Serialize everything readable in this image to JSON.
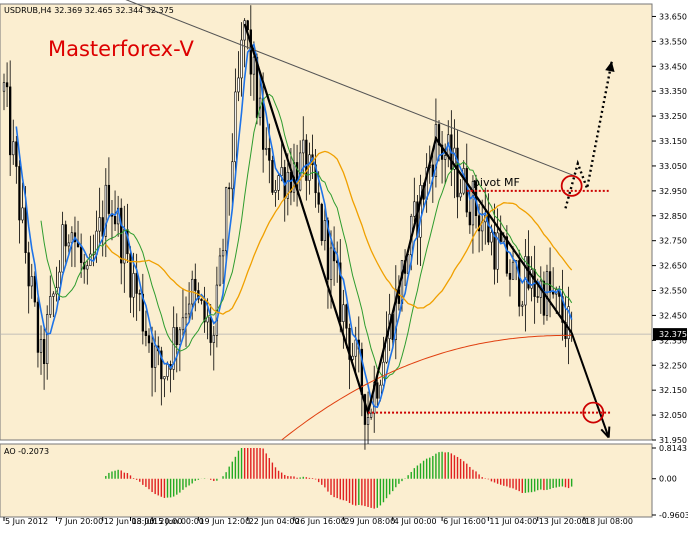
{
  "header": {
    "symbol_info": "USDRUB,H4  32.369 32.465 32.344 32.375"
  },
  "watermark": "Masterforex-V",
  "annotation": {
    "pivot_label": "pivot MF"
  },
  "colors": {
    "background": "#fbeed0",
    "candles": "#000000",
    "fast_ma": "#1e73e8",
    "medium_ma": "#2e9c2e",
    "slow_ma": "#f0a000",
    "long_ma": "#e04010",
    "wave_lines": "#000000",
    "pivot_lines": "#cc0000",
    "forecast": "#000000",
    "ao_up": "#22aa22",
    "ao_down": "#e02020",
    "watermark": "#dd0000"
  },
  "chart_data": [
    {
      "type": "candlestick",
      "symbol": "USDRUB",
      "timeframe": "H4",
      "ohlc_last": {
        "open": 32.369,
        "high": 32.465,
        "low": 32.344,
        "close": 32.375
      },
      "last_price_label": "32.375",
      "ylim": [
        31.95,
        33.7
      ],
      "y_ticks": [
        "33.650",
        "33.550",
        "33.450",
        "33.350",
        "33.250",
        "33.150",
        "33.050",
        "32.950",
        "32.850",
        "32.750",
        "32.650",
        "32.550",
        "32.450",
        "32.350",
        "32.250",
        "32.150",
        "32.050",
        "31.950"
      ],
      "x_ticks": [
        "5 Jun 2012",
        "7 Jun 20:00",
        "12 Jun 08:00",
        "13 Jun 20:00",
        "15 Jun 00:00",
        "19 Jun 12:00",
        "22 Jun 04:00",
        "26 Jun 16:00",
        "29 Jun 08:00",
        "4 Jul 00:00",
        "6 Jul 16:00",
        "11 Jul 04:00",
        "13 Jul 20:00",
        "18 Jul 08:00"
      ],
      "wave_points": [
        {
          "time": "22 Jun 00:00",
          "price": 33.62
        },
        {
          "time": "2 Jul 16:00",
          "price": 32.06
        },
        {
          "time": "6 Jul 08:00",
          "price": 33.16
        },
        {
          "time": "17 Jul 16:00",
          "price": 32.38
        }
      ],
      "forecast_down": {
        "from": {
          "time": "17 Jul 16:00",
          "price": 32.38
        },
        "to": {
          "time": "19 Jul 16:00",
          "price": 31.96
        }
      },
      "forecast_up": [
        {
          "time": "17 Jul 08:00",
          "price": 32.88
        },
        {
          "time": "18 Jul 00:00",
          "price": 33.06
        },
        {
          "time": "18 Jul 12:00",
          "price": 32.96
        },
        {
          "time": "19 Jul 20:00",
          "price": 33.47
        }
      ],
      "resistance_line": {
        "from": {
          "time": "13 Jun 12:00",
          "price": 33.72
        },
        "to": {
          "time": "17 Jul 20:00",
          "price": 33.01
        }
      },
      "pivot_levels": [
        32.95,
        32.06
      ]
    },
    {
      "type": "bar",
      "indicator": "AO",
      "value_label": "AO -0.2073",
      "y_ticks": [
        "0.8143",
        "0.00",
        "-0.9603"
      ],
      "ylim": [
        -0.9603,
        0.8143
      ]
    }
  ]
}
